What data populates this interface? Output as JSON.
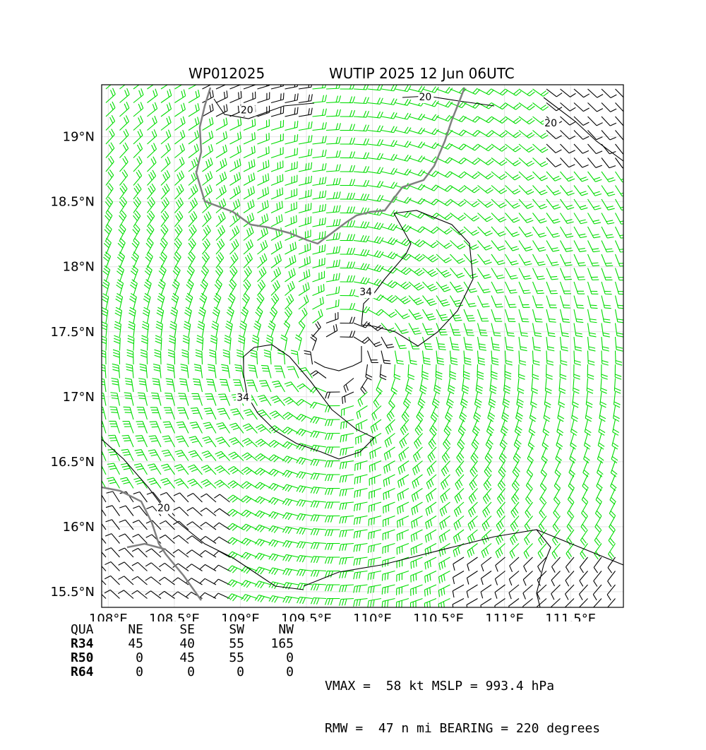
{
  "title": {
    "storm_id": "WP012025",
    "storm_name_time": "WUTIP 2025 12 Jun 06UTC"
  },
  "map": {
    "lon_range": [
      107.95,
      111.9
    ],
    "lat_range": [
      15.38,
      19.4
    ],
    "lon_ticks": [
      {
        "value": 108.0,
        "label": "108°E"
      },
      {
        "value": 108.5,
        "label": "108.5°E"
      },
      {
        "value": 109.0,
        "label": "109°E"
      },
      {
        "value": 109.5,
        "label": "109.5°E"
      },
      {
        "value": 110.0,
        "label": "110°E"
      },
      {
        "value": 110.5,
        "label": "110.5°E"
      },
      {
        "value": 111.0,
        "label": "111°E"
      },
      {
        "value": 111.5,
        "label": "111.5°E"
      }
    ],
    "lat_ticks": [
      {
        "value": 19.0,
        "label": "19°N"
      },
      {
        "value": 18.5,
        "label": "18.5°N"
      },
      {
        "value": 18.0,
        "label": "18°N"
      },
      {
        "value": 17.5,
        "label": "17.5°N"
      },
      {
        "value": 17.0,
        "label": "17°N"
      },
      {
        "value": 16.5,
        "label": "16.5°N"
      },
      {
        "value": 16.0,
        "label": "16°N"
      },
      {
        "value": 15.5,
        "label": "15.5°N"
      }
    ],
    "storm_center": {
      "lon": 109.75,
      "lat": 17.28
    },
    "wind_colors": {
      "below_20": "#000000",
      "20_to_34": "#00dd00",
      "34_to_50": "#e8b800",
      "above_50": "#e85a00"
    },
    "coastline_color": "#808080",
    "contour_labels": [
      {
        "text": "20",
        "lon": 109.05,
        "lat": 19.18
      },
      {
        "text": "20",
        "lon": 110.4,
        "lat": 19.28
      },
      {
        "text": "20",
        "lon": 111.35,
        "lat": 19.08
      },
      {
        "text": "20",
        "lon": 108.42,
        "lat": 16.12
      },
      {
        "text": "34",
        "lon": 109.95,
        "lat": 17.78
      },
      {
        "text": "34",
        "lon": 109.02,
        "lat": 16.97
      }
    ]
  },
  "quadrant_table": {
    "headers": [
      "QUA",
      "NE",
      "SE",
      "SW",
      "NW"
    ],
    "rows": [
      [
        "R34",
        "45",
        "40",
        "55",
        "165"
      ],
      [
        "R50",
        "0",
        "45",
        "55",
        "0"
      ],
      [
        "R64",
        "0",
        "0",
        "0",
        "0"
      ]
    ]
  },
  "stats": {
    "line1": "VMAX =  58 kt MSLP = 993.4 hPa",
    "line2": "RMW =  47 n mi BEARING = 220 degrees"
  }
}
